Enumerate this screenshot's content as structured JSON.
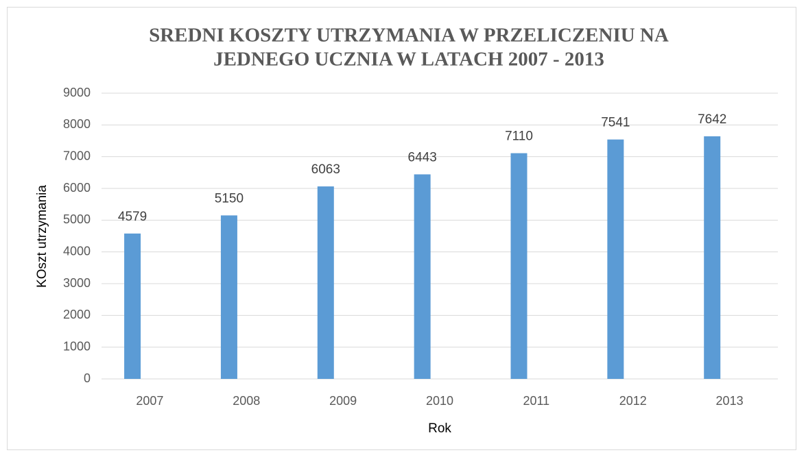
{
  "chart_data": {
    "type": "bar",
    "title": [
      "SREDNI  KOSZTY UTRZYMANIA W PRZELICZENIU NA",
      "JEDNEGO UCZNIA W LATACH 2007 - 2013"
    ],
    "x_label": "Rok",
    "y_label": "KOszt utrzymania",
    "categories": [
      "2007",
      "2008",
      "2009",
      "2010",
      "2011",
      "2012",
      "2013"
    ],
    "values": [
      4579,
      5150,
      6063,
      6443,
      7110,
      7541,
      7642
    ],
    "color": "#5b9bd5",
    "ylim": [
      0,
      9000
    ],
    "yticks": [
      0,
      1000,
      2000,
      3000,
      4000,
      5000,
      6000,
      7000,
      8000,
      9000
    ],
    "grid": true
  }
}
